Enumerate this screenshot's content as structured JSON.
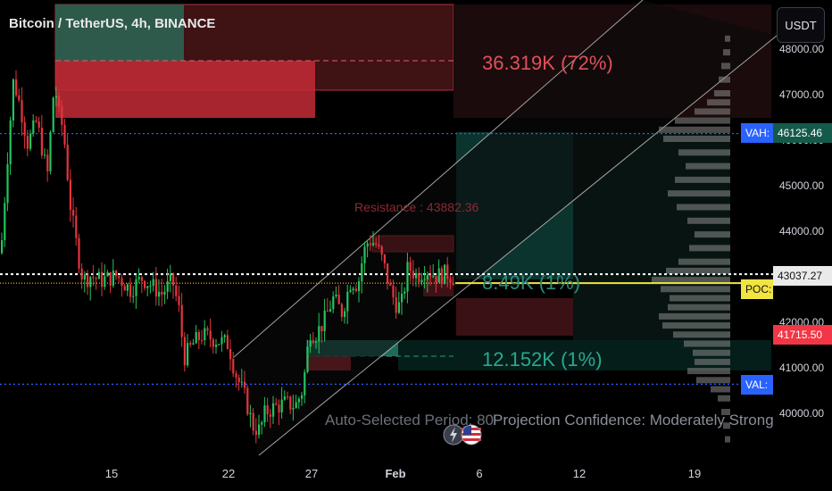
{
  "header": {
    "title": "Bitcoin / TetherUS, 4h, BINANCE",
    "currency_button": "USDT"
  },
  "price_axis": {
    "ticks": [
      "48000.00",
      "47000.00",
      "46000.00",
      "45000.00",
      "44000.00",
      "43000.00",
      "42000.00",
      "41000.00",
      "40000.00"
    ],
    "tags": {
      "vah_price": "46125.46",
      "current_price": "43037.27",
      "low_price": "41715.50",
      "vah_label": "VAH:",
      "poc_label": "POC:",
      "val_label": "VAL:"
    }
  },
  "time_axis": {
    "ticks": [
      "15",
      "22",
      "27",
      "Feb",
      "6",
      "12",
      "19"
    ]
  },
  "annotations": {
    "top_projection": "36.319K (72%)",
    "mid_projection": "8.49K (1%)",
    "low_projection": "12.152K (1%)",
    "resistance": "Resistance : 43882.36",
    "auto_period": "Auto-Selected Period: 80",
    "confidence": "Projection Confidence: Moderately Strong"
  },
  "colors": {
    "background": "#000000",
    "up": "#22c55e",
    "down": "#e5343d",
    "vah_line": "#2962ff",
    "poc_line": "#f0e442",
    "low_tag": "#f23645",
    "teal": "#0f766e",
    "profile": "#8a8a8a"
  },
  "chart_data": {
    "type": "candlestick",
    "title": "Bitcoin / TetherUS, 4h, BINANCE",
    "price_range": [
      39300,
      48200
    ],
    "reference_levels": {
      "VAH": 46125.46,
      "POC": 42840,
      "VAL": 40620,
      "last_price": 43037.27,
      "low_tag": 41715.5,
      "resistance": 43882.36
    },
    "close_path": [
      [
        0,
        43500
      ],
      [
        8,
        45800
      ],
      [
        14,
        47300
      ],
      [
        22,
        46700
      ],
      [
        30,
        45900
      ],
      [
        40,
        46400
      ],
      [
        52,
        45200
      ],
      [
        60,
        47300
      ],
      [
        64,
        46600
      ],
      [
        70,
        46200
      ],
      [
        78,
        44500
      ],
      [
        86,
        43500
      ],
      [
        92,
        42900
      ],
      [
        100,
        43000
      ],
      [
        112,
        42900
      ],
      [
        130,
        43000
      ],
      [
        145,
        42700
      ],
      [
        158,
        42950
      ],
      [
        168,
        42800
      ],
      [
        180,
        42600
      ],
      [
        192,
        42900
      ],
      [
        200,
        42200
      ],
      [
        205,
        41200
      ],
      [
        215,
        41500
      ],
      [
        225,
        41700
      ],
      [
        240,
        41600
      ],
      [
        255,
        41500
      ],
      [
        262,
        40900
      ],
      [
        268,
        40600
      ],
      [
        274,
        40300
      ],
      [
        282,
        39700
      ],
      [
        290,
        39600
      ],
      [
        296,
        40000
      ],
      [
        305,
        40100
      ],
      [
        318,
        40200
      ],
      [
        330,
        40150
      ],
      [
        338,
        40500
      ],
      [
        346,
        41800
      ],
      [
        352,
        41700
      ],
      [
        362,
        42000
      ],
      [
        372,
        42500
      ],
      [
        382,
        42200
      ],
      [
        392,
        42900
      ],
      [
        400,
        42800
      ],
      [
        406,
        43500
      ],
      [
        412,
        43800
      ],
      [
        420,
        43700
      ],
      [
        428,
        43300
      ],
      [
        436,
        42700
      ],
      [
        442,
        42400
      ],
      [
        448,
        42300
      ],
      [
        456,
        43200
      ],
      [
        466,
        43000
      ],
      [
        476,
        43150
      ],
      [
        488,
        43000
      ],
      [
        500,
        43050
      ],
      [
        508,
        42950
      ]
    ],
    "volume_profile": [
      [
        48200,
        6
      ],
      [
        47900,
        8
      ],
      [
        47600,
        10
      ],
      [
        47300,
        13
      ],
      [
        47000,
        18
      ],
      [
        46800,
        26
      ],
      [
        46600,
        40
      ],
      [
        46400,
        62
      ],
      [
        46200,
        80
      ],
      [
        46000,
        75
      ],
      [
        45700,
        58
      ],
      [
        45400,
        50
      ],
      [
        45100,
        62
      ],
      [
        44800,
        70
      ],
      [
        44500,
        60
      ],
      [
        44200,
        48
      ],
      [
        43900,
        40
      ],
      [
        43600,
        46
      ],
      [
        43300,
        58
      ],
      [
        43100,
        72
      ],
      [
        42900,
        88
      ],
      [
        42700,
        78
      ],
      [
        42500,
        68
      ],
      [
        42300,
        70
      ],
      [
        42100,
        80
      ],
      [
        41900,
        76
      ],
      [
        41700,
        64
      ],
      [
        41500,
        52
      ],
      [
        41300,
        42
      ],
      [
        41100,
        40
      ],
      [
        40900,
        48
      ],
      [
        40700,
        38
      ],
      [
        40500,
        22
      ],
      [
        40300,
        14
      ],
      [
        40000,
        10
      ],
      [
        39700,
        8
      ],
      [
        39400,
        6
      ]
    ]
  }
}
